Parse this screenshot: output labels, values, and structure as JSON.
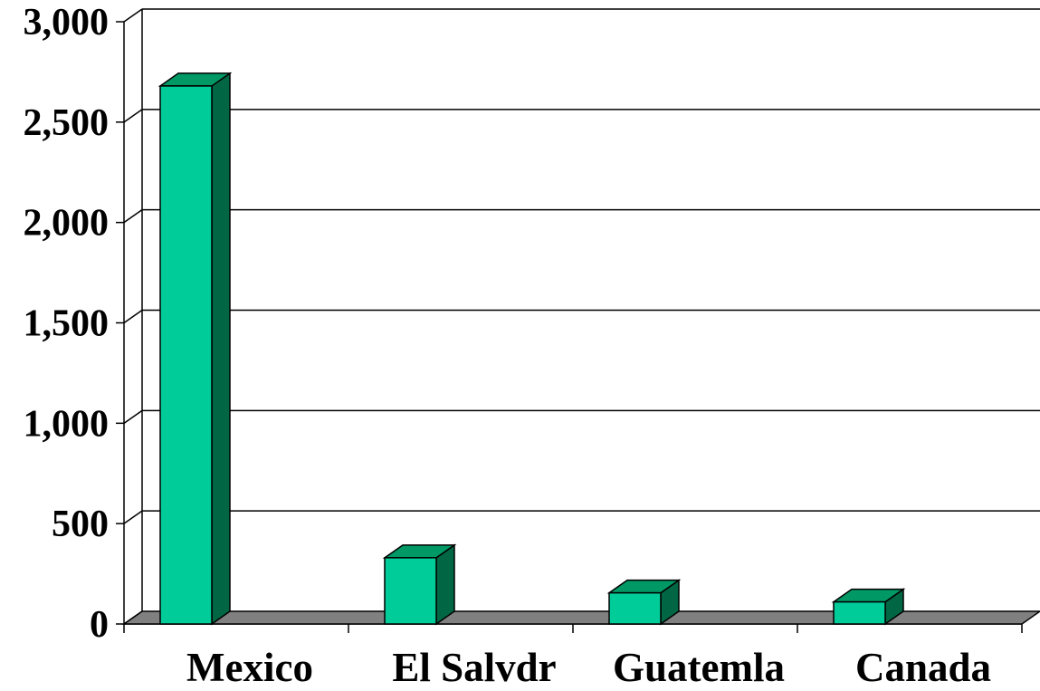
{
  "chart_data": {
    "type": "bar",
    "title": "",
    "xlabel": "",
    "ylabel": "",
    "categories": [
      "Mexico",
      "El Salvdr",
      "Guatemla",
      "Canada"
    ],
    "series": [
      {
        "values": [
          2680,
          330,
          155,
          110
        ]
      }
    ],
    "ylim": [
      0,
      3000
    ],
    "yticks": [
      0,
      500,
      1000,
      1500,
      2000,
      2500,
      3000
    ],
    "ytick_labels": [
      "0",
      "500",
      "1,000",
      "1,500",
      "2,000",
      "2,500",
      "3,000"
    ],
    "grid": true,
    "legend": "none",
    "style": "3d-column",
    "colors": {
      "bar_front": "#00CC99",
      "bar_top": "#009966",
      "bar_side": "#006644",
      "floor": "#808080",
      "grid": "#000000"
    }
  }
}
